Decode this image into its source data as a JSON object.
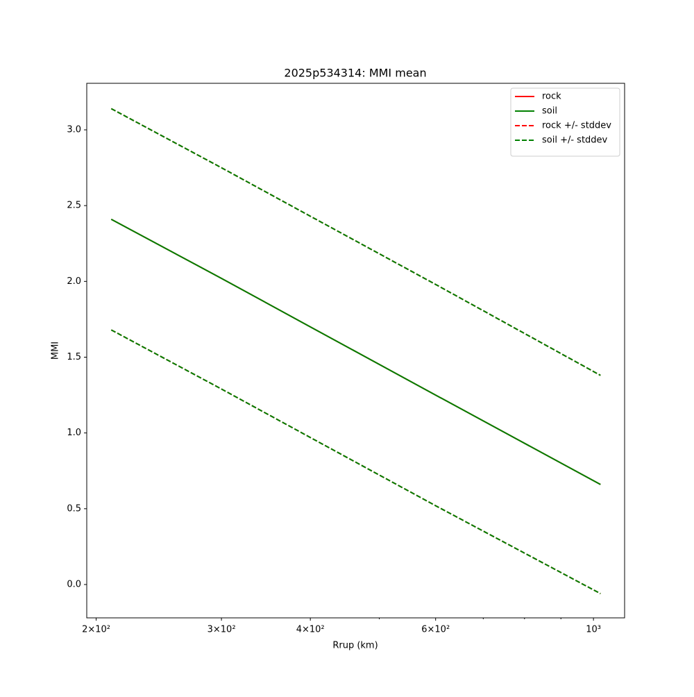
{
  "chart_data": {
    "type": "line",
    "title": "2025p534314: MMI mean",
    "xlabel": "Rrup (km)",
    "ylabel": "MMI",
    "xscale": "log",
    "x": [
      210,
      300,
      400,
      600,
      1023
    ],
    "series": [
      {
        "name": "rock",
        "color": "#ff0000",
        "dashed": false,
        "values": [
          2.41,
          2.02,
          1.7,
          1.25,
          0.66
        ]
      },
      {
        "name": "soil",
        "color": "#008000",
        "dashed": false,
        "values": [
          2.41,
          2.02,
          1.7,
          1.25,
          0.66
        ]
      },
      {
        "name": "rock +/- stddev",
        "color": "#ff0000",
        "dashed": true,
        "upper": [
          3.14,
          2.75,
          2.43,
          1.98,
          1.38
        ],
        "lower": [
          1.68,
          1.29,
          0.97,
          0.52,
          -0.06
        ]
      },
      {
        "name": "soil +/- stddev",
        "color": "#008000",
        "dashed": true,
        "upper": [
          3.14,
          2.75,
          2.43,
          1.98,
          1.38
        ],
        "lower": [
          1.68,
          1.29,
          0.97,
          0.52,
          -0.06
        ]
      }
    ],
    "xlim": [
      194,
      1106
    ],
    "ylim": [
      -0.22,
      3.307
    ],
    "xticks": [
      {
        "value": 200,
        "label": "2×10²"
      },
      {
        "value": 300,
        "label": "3×10²"
      },
      {
        "value": 400,
        "label": "4×10²"
      },
      {
        "value": 600,
        "label": "6×10²"
      },
      {
        "value": 1000,
        "label": "10³"
      }
    ],
    "xminorticks": [
      500,
      700,
      800,
      900
    ],
    "yticks": [
      {
        "value": 0,
        "label": "0.0"
      },
      0.5,
      {
        "value": 1,
        "label": "1.0"
      },
      1.5,
      {
        "value": 2,
        "label": "2.0"
      },
      2.5,
      {
        "value": 3,
        "label": "3.0"
      }
    ],
    "legend": "upper right",
    "grid": false
  }
}
